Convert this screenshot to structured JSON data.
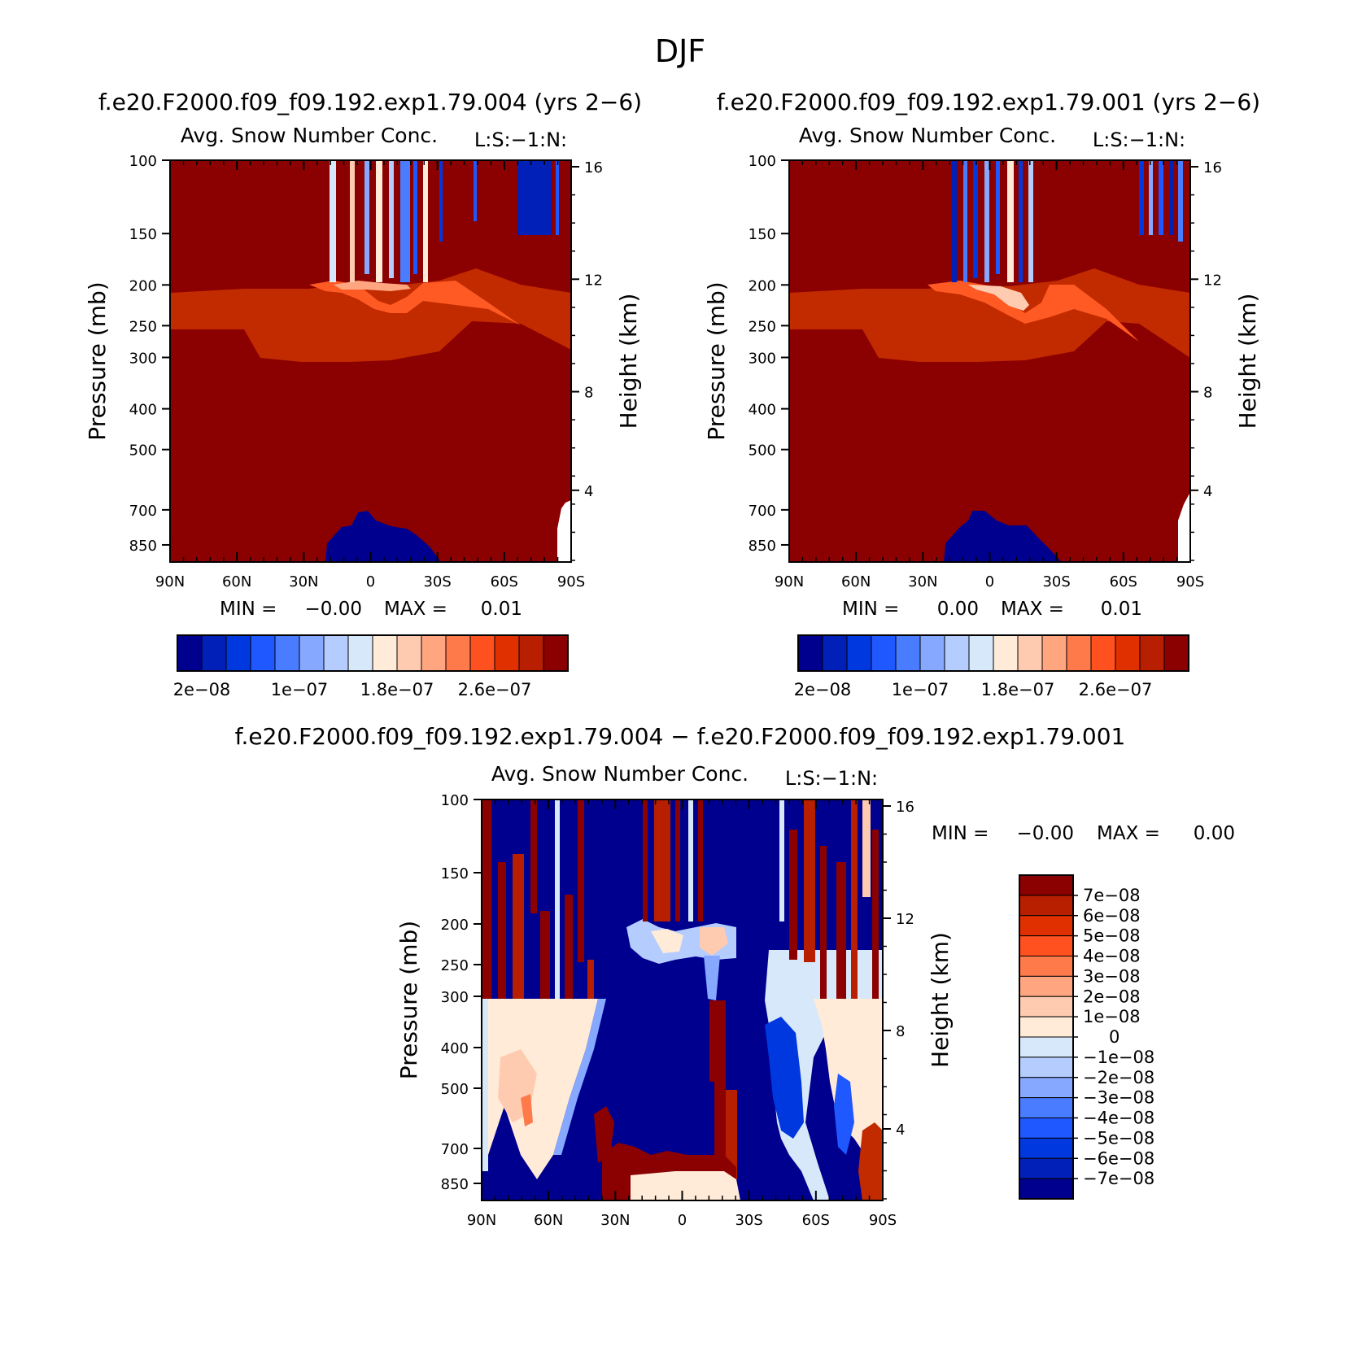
{
  "page_title": "DJF",
  "colors": {
    "seq_levels": [
      "#00008f",
      "#0020b8",
      "#0038e0",
      "#1f58ff",
      "#4a7cff",
      "#86a8ff",
      "#b5ccff",
      "#d8e8fb",
      "#ffebd8",
      "#ffcbb0",
      "#ffa680",
      "#ff7a4a",
      "#ff5020",
      "#e03000",
      "#b81f00",
      "#8b0000"
    ],
    "diff_levels": [
      "#00008f",
      "#0020b8",
      "#0038e0",
      "#1f58ff",
      "#4a7cff",
      "#86a8ff",
      "#b5ccff",
      "#d8e8fb",
      "#ffebd8",
      "#ffcbb0",
      "#ffa680",
      "#ff7a4a",
      "#ff5020",
      "#e03000",
      "#b81f00",
      "#8b0000"
    ]
  },
  "chart_data": [
    {
      "type": "heatmap",
      "case_title": "f.e20.F2000.f09_f09.192.exp1.79.004 (yrs 2−6)",
      "title": "Avg. Snow Number Conc.",
      "units_label": "L:S:−1:N:",
      "ylabel": "Pressure (mb)",
      "ylabel_right": "Height (km)",
      "x_ticks": [
        "90N",
        "60N",
        "30N",
        "0",
        "30S",
        "60S",
        "90S"
      ],
      "y_ticks": [
        "100",
        "150",
        "200",
        "250",
        "300",
        "400",
        "500",
        "700",
        "850"
      ],
      "y_ticks_right": [
        "16",
        "12",
        "8",
        "4"
      ],
      "ylim": [
        100,
        925
      ],
      "y_scale": "log",
      "min_label": "MIN =",
      "min_value": "−0.00",
      "max_label": "MAX =",
      "max_value": "0.01",
      "colorbar_labels": [
        "2e−08",
        "1e−07",
        "1.8e−07",
        "2.6e−07"
      ]
    },
    {
      "type": "heatmap",
      "case_title": "f.e20.F2000.f09_f09.192.exp1.79.001 (yrs 2−6)",
      "title": "Avg. Snow Number Conc.",
      "units_label": "L:S:−1:N:",
      "ylabel": "Pressure (mb)",
      "ylabel_right": "Height (km)",
      "x_ticks": [
        "90N",
        "60N",
        "30N",
        "0",
        "30S",
        "60S",
        "90S"
      ],
      "y_ticks": [
        "100",
        "150",
        "200",
        "250",
        "300",
        "400",
        "500",
        "700",
        "850"
      ],
      "y_ticks_right": [
        "16",
        "12",
        "8",
        "4"
      ],
      "ylim": [
        100,
        925
      ],
      "y_scale": "log",
      "min_label": "MIN =",
      "min_value": "0.00",
      "max_label": "MAX =",
      "max_value": "0.01",
      "colorbar_labels": [
        "2e−08",
        "1e−07",
        "1.8e−07",
        "2.6e−07"
      ]
    },
    {
      "type": "heatmap",
      "case_title": "f.e20.F2000.f09_f09.192.exp1.79.004 − f.e20.F2000.f09_f09.192.exp1.79.001",
      "title": "Avg. Snow Number Conc.",
      "units_label": "L:S:−1:N:",
      "ylabel": "Pressure (mb)",
      "ylabel_right": "Height (km)",
      "x_ticks": [
        "90N",
        "60N",
        "30N",
        "0",
        "30S",
        "60S",
        "90S"
      ],
      "y_ticks": [
        "100",
        "150",
        "200",
        "250",
        "300",
        "400",
        "500",
        "700",
        "850"
      ],
      "y_ticks_right": [
        "16",
        "12",
        "8",
        "4"
      ],
      "ylim": [
        100,
        925
      ],
      "y_scale": "log",
      "min_label": "MIN =",
      "min_value": "−0.00",
      "max_label": "MAX =",
      "max_value": "0.00",
      "colorbar_labels": [
        "7e−08",
        "6e−08",
        "5e−08",
        "4e−08",
        "3e−08",
        "2e−08",
        "1e−08",
        "0",
        "−1e−08",
        "−2e−08",
        "−3e−08",
        "−4e−08",
        "−5e−08",
        "−6e−08",
        "−7e−08"
      ]
    }
  ]
}
